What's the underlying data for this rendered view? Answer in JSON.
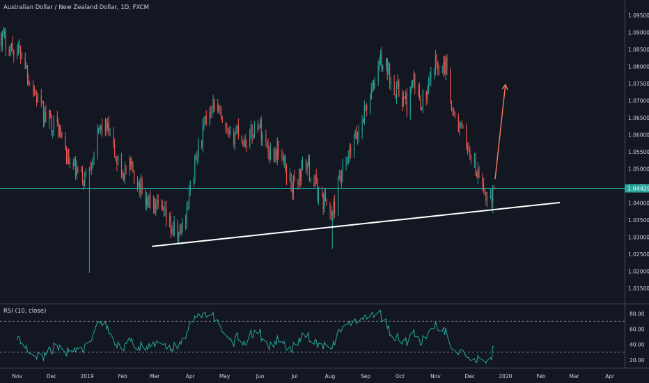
{
  "chart_data": {
    "type": "candlestick",
    "title": "Australian Dollar / New Zealand Dollar, 1D, FXCM",
    "x_labels": [
      "Nov",
      "Dec",
      "2019",
      "Feb",
      "Mar",
      "Apr",
      "May",
      "Jun",
      "Jul",
      "Aug",
      "Sep",
      "Oct",
      "Nov",
      "Dec",
      "2020",
      "Feb",
      "Mar",
      "Apr"
    ],
    "x_label_days": [
      0,
      30,
      61,
      92,
      120,
      151,
      181,
      212,
      242,
      273,
      304,
      334,
      365,
      395,
      426,
      457,
      486,
      517
    ],
    "x_range": [
      -15,
      530
    ],
    "price_axis": {
      "range": [
        1.0105,
        1.0995
      ],
      "ticks": [
        "1.09500",
        "1.09000",
        "1.08500",
        "1.08000",
        "1.07500",
        "1.07000",
        "1.06500",
        "1.06000",
        "1.05500",
        "1.05000",
        "1.04500",
        "1.04000",
        "1.03500",
        "1.03000",
        "1.02500",
        "1.02000",
        "1.01500"
      ]
    },
    "last_price": {
      "label": "1.04429",
      "value": 1.04429
    },
    "price_anchors": [
      [
        -15,
        1.0895
      ],
      [
        -8,
        1.0865
      ],
      [
        5,
        1.0835
      ],
      [
        10,
        1.077
      ],
      [
        18,
        1.07
      ],
      [
        24,
        1.065
      ],
      [
        30,
        1.064
      ],
      [
        36,
        1.062
      ],
      [
        45,
        1.052
      ],
      [
        52,
        1.049
      ],
      [
        58,
        1.047
      ],
      [
        62,
        1.05
      ],
      [
        70,
        1.059
      ],
      [
        75,
        1.064
      ],
      [
        80,
        1.06
      ],
      [
        86,
        1.053
      ],
      [
        92,
        1.049
      ],
      [
        98,
        1.05
      ],
      [
        104,
        1.048
      ],
      [
        110,
        1.042
      ],
      [
        116,
        1.04
      ],
      [
        122,
        1.038
      ],
      [
        128,
        1.036
      ],
      [
        134,
        1.033
      ],
      [
        140,
        1.03
      ],
      [
        146,
        1.035
      ],
      [
        152,
        1.046
      ],
      [
        158,
        1.056
      ],
      [
        164,
        1.063
      ],
      [
        170,
        1.07
      ],
      [
        175,
        1.067
      ],
      [
        180,
        1.061
      ],
      [
        186,
        1.058
      ],
      [
        192,
        1.062
      ],
      [
        198,
        1.058
      ],
      [
        204,
        1.06
      ],
      [
        210,
        1.064
      ],
      [
        216,
        1.058
      ],
      [
        222,
        1.054
      ],
      [
        228,
        1.056
      ],
      [
        234,
        1.05
      ],
      [
        240,
        1.045
      ],
      [
        246,
        1.048
      ],
      [
        252,
        1.052
      ],
      [
        258,
        1.047
      ],
      [
        264,
        1.042
      ],
      [
        270,
        1.04
      ],
      [
        275,
        1.036
      ],
      [
        280,
        1.045
      ],
      [
        286,
        1.05
      ],
      [
        292,
        1.056
      ],
      [
        298,
        1.061
      ],
      [
        304,
        1.068
      ],
      [
        310,
        1.073
      ],
      [
        316,
        1.082
      ],
      [
        322,
        1.08
      ],
      [
        328,
        1.075
      ],
      [
        334,
        1.072
      ],
      [
        340,
        1.069
      ],
      [
        346,
        1.075
      ],
      [
        352,
        1.07
      ],
      [
        358,
        1.072
      ],
      [
        364,
        1.08
      ],
      [
        370,
        1.082
      ],
      [
        376,
        1.079
      ],
      [
        380,
        1.066
      ],
      [
        386,
        1.062
      ],
      [
        392,
        1.058
      ],
      [
        398,
        1.051
      ],
      [
        404,
        1.046
      ],
      [
        410,
        1.0415
      ],
      [
        416,
        1.043
      ]
    ],
    "trendline": {
      "start": [
        118,
        1.0273
      ],
      "end": [
        473,
        1.0401
      ]
    },
    "forecast_arrow": {
      "start": [
        417,
        1.047
      ],
      "end": [
        426,
        1.0747
      ]
    },
    "rsi": {
      "label": "RSI (10, close)",
      "range": [
        10,
        92
      ],
      "ticks": [
        "80.00",
        "60.00",
        "40.00",
        "20.00"
      ],
      "bands": [
        70,
        30
      ]
    },
    "colors": {
      "background": "#131722",
      "candle_up": "#26a69a",
      "candle_down": "#ef5350",
      "rsi_line": "#26a69a",
      "trendline": "#ffffff",
      "arrow": "#f4775a",
      "price_tag": "#26a69a",
      "axis_text": "#d1d4dc",
      "separator": "#4a4f5c"
    }
  }
}
